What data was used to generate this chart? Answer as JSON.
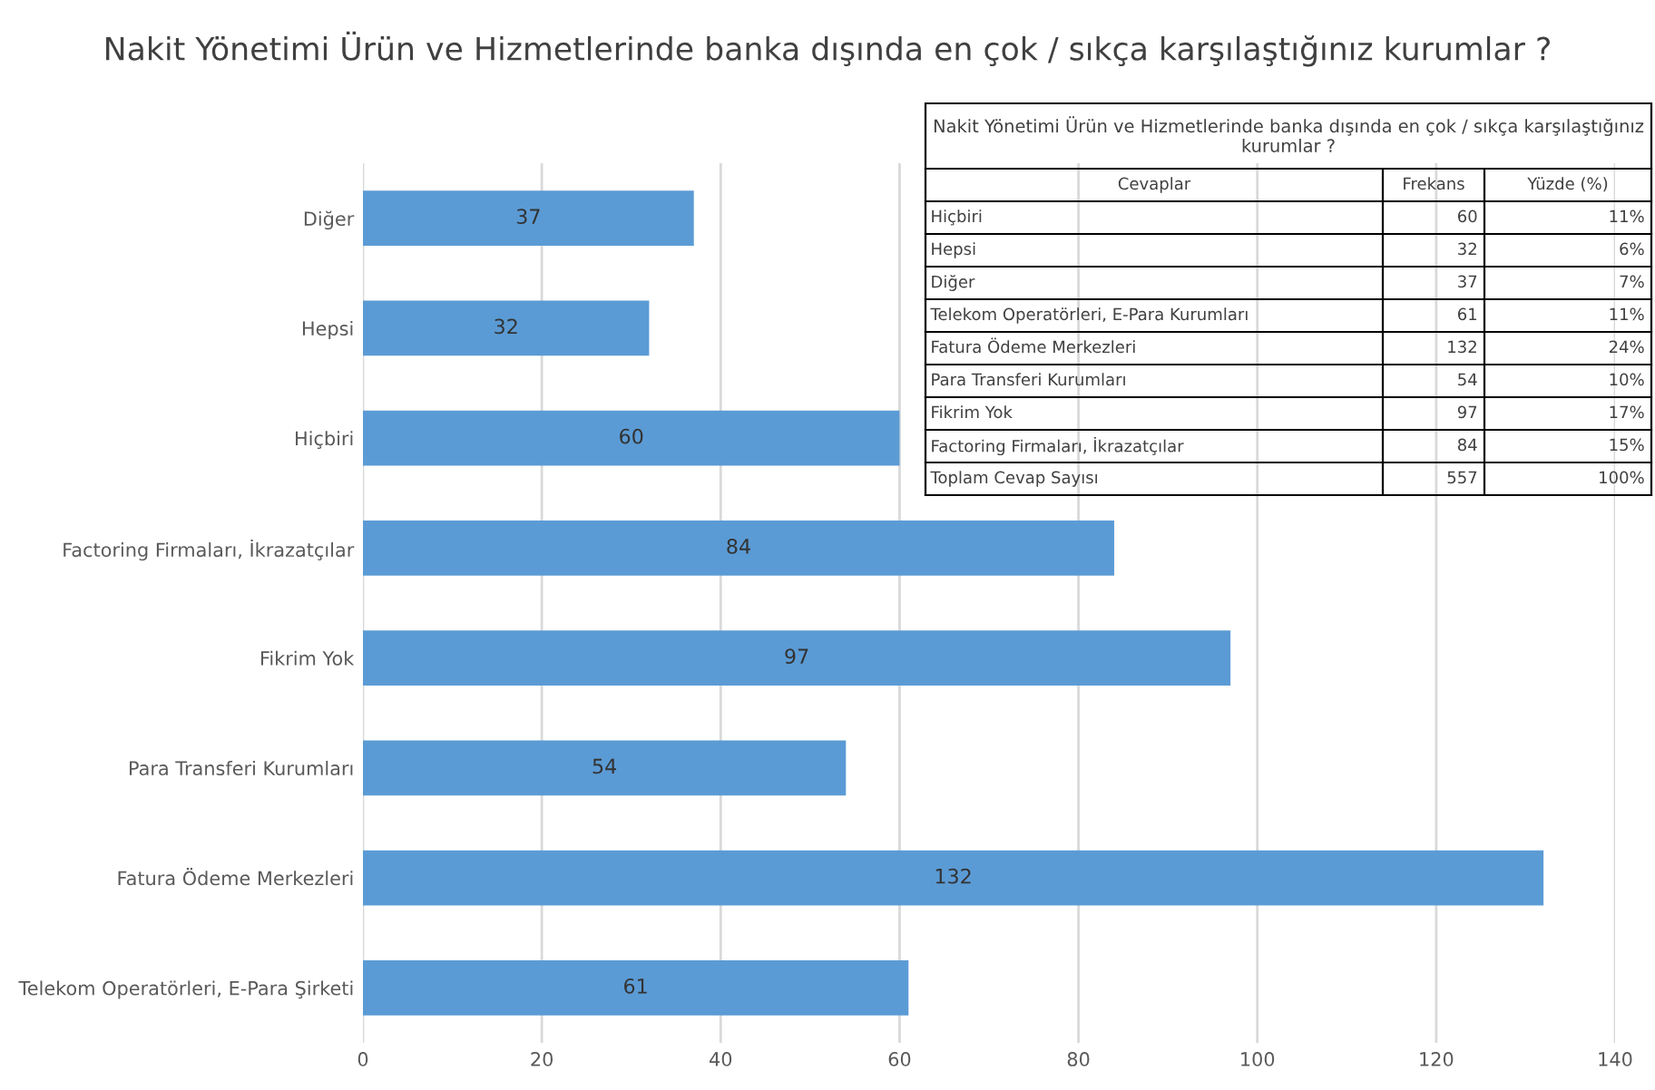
{
  "chart_data": {
    "type": "bar",
    "orientation": "horizontal",
    "title": "Nakit Yönetimi Ürün ve Hizmetlerinde banka dışında en çok / sıkça karşılaştığınız kurumlar ?",
    "categories": [
      "Diğer",
      "Hepsi",
      "Hiçbiri",
      "Factoring Firmaları, İkrazatçılar",
      "Fikrim Yok",
      "Para Transferi Kurumları",
      "Fatura Ödeme Merkezleri",
      "Telekom Operatörleri, E-Para Şirketi"
    ],
    "values": [
      37,
      32,
      60,
      84,
      97,
      54,
      132,
      61
    ],
    "color": "#5b9bd5",
    "xlim": [
      0,
      140
    ],
    "xticks": [
      0,
      20,
      40,
      60,
      80,
      100,
      120,
      140
    ],
    "grid": "x",
    "data_labels": true,
    "annotations": [
      "Nakit Yönetimi Ürün ve Hizmetlerinde banka dışında en çok / sıkça karşılaştığınız kurumlar ?",
      "Cevaplar",
      "Frekans",
      "Yüzde (%)",
      "Hiçbiri",
      "60",
      "11%",
      "Hepsi",
      "32",
      "6%",
      "Diğer",
      "37",
      "7%",
      "Telekom Operatörleri, E-Para Kurumları",
      "61",
      "11%",
      "Fatura Ödeme Merkezleri",
      "132",
      "24%",
      "Para Transferi Kurumları",
      "54",
      "10%",
      "Fikrim Yok",
      "97",
      "17%",
      "Factoring Firmaları, İkrazatçılar",
      "84",
      "15%",
      "Toplam Cevap Sayısı",
      "557",
      "100%"
    ]
  }
}
